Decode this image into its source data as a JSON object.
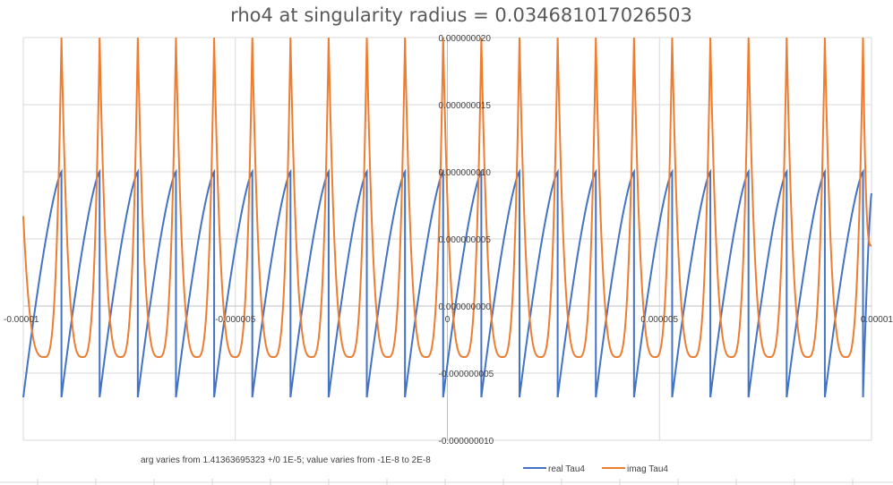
{
  "chart_data": {
    "type": "line",
    "title": "rho4 at singularity radius = 0.034681017026503",
    "xlabel": "",
    "ylabel": "",
    "xlim": [
      -1e-05,
      1e-05
    ],
    "ylim": [
      -1e-08,
      2e-08
    ],
    "x_ticks": [
      -1e-05,
      -5e-06,
      0,
      5e-06,
      1e-05
    ],
    "x_tick_labels": [
      "-0.00001",
      "-0.000005",
      "0",
      "0.000005",
      "0.00001"
    ],
    "y_ticks": [
      -1e-08,
      -5e-09,
      0,
      5e-09,
      1e-08,
      1.5e-08,
      2e-08
    ],
    "y_tick_labels": [
      "-0.000000010",
      "-0.000000005",
      "0.000000000",
      "0.000000005",
      "0.000000010",
      "0.000000015",
      "0.000000020"
    ],
    "grid": true,
    "legend_position": "bottom",
    "note": "arg varies from 1.41363695323 +/0 1E-5; value varies from -1E-8 to 2E-8",
    "series": [
      {
        "name": "real Tau4",
        "color": "#4472C4",
        "x": [
          -1e-05,
          -9.1e-06,
          -9.1e-06,
          -8.2e-06,
          -8.2e-06,
          -7.3e-06,
          -7.3e-06,
          -6.4e-06,
          -6.4e-06,
          -5.5e-06,
          -5.5e-06,
          -4.6e-06,
          -4.6e-06,
          -3.7e-06,
          -3.7e-06,
          -2.8e-06,
          -2.8e-06,
          -1.9e-06,
          -1.9e-06,
          -1e-06,
          -1e-06,
          -1e-07,
          -1e-07,
          8e-07,
          8e-07,
          1.7e-06,
          1.7e-06,
          2.6e-06,
          2.6e-06,
          3.5e-06,
          3.5e-06,
          4.4e-06,
          4.4e-06,
          5.3e-06,
          5.3e-06,
          6.2e-06,
          6.2e-06,
          7.1e-06,
          7.1e-06,
          8e-06,
          8e-06,
          8.9e-06,
          8.9e-06,
          9.8e-06,
          9.8e-06,
          1e-05
        ],
        "y": [
          -6.8e-09,
          1e-08,
          -6.8e-09,
          1e-08,
          -6.8e-09,
          1e-08,
          -6.8e-09,
          1e-08,
          -6.8e-09,
          1e-08,
          -6.8e-09,
          1e-08,
          -6.8e-09,
          1e-08,
          -6.8e-09,
          1e-08,
          -6.8e-09,
          1e-08,
          -6.8e-09,
          1e-08,
          -6.8e-09,
          1e-08,
          -6.8e-09,
          1e-08,
          -6.8e-09,
          1e-08,
          -6.8e-09,
          1e-08,
          -6.8e-09,
          1e-08,
          -6.8e-09,
          1e-08,
          -6.8e-09,
          1e-08,
          -6.8e-09,
          1e-08,
          -6.8e-09,
          1e-08,
          -6.8e-09,
          1e-08,
          -6.8e-09,
          1e-08,
          -6.8e-09,
          1e-08,
          -6.8e-09,
          8.4e-09
        ]
      },
      {
        "name": "imag Tau4",
        "color": "#ED7D31",
        "x": [
          -1e-05,
          -9.5e-06,
          -9.1e-06,
          -8.6e-06,
          -8.2e-06,
          -7.7e-06,
          -7.3e-06,
          -6.8e-06,
          -6.4e-06,
          -5.9e-06,
          -5.5e-06,
          -5e-06,
          -4.6e-06,
          -4.1e-06,
          -3.7e-06,
          -3.2e-06,
          -2.8e-06,
          -2.3e-06,
          -1.9e-06,
          -1.4e-06,
          -1e-06,
          -5e-07,
          -1e-07,
          4e-07,
          8e-07,
          1.3e-06,
          1.7e-06,
          2.2e-06,
          2.6e-06,
          3.1e-06,
          3.5e-06,
          4e-06,
          4.4e-06,
          4.9e-06,
          5.3e-06,
          5.8e-06,
          6.2e-06,
          6.7e-06,
          7.1e-06,
          7.6e-06,
          8e-06,
          8.5e-06,
          8.9e-06,
          9.4e-06,
          9.8e-06,
          1e-05
        ],
        "y": [
          6.7e-09,
          -3.8e-09,
          2e-08,
          -3.8e-09,
          2e-08,
          -3.8e-09,
          2e-08,
          -3.8e-09,
          2e-08,
          -3.8e-09,
          2e-08,
          -3.8e-09,
          2e-08,
          -3.8e-09,
          2e-08,
          -3.8e-09,
          2e-08,
          -3.8e-09,
          2e-08,
          -3.8e-09,
          2e-08,
          -3.8e-09,
          2e-08,
          -3.8e-09,
          2e-08,
          -3.8e-09,
          2e-08,
          -3.8e-09,
          2e-08,
          -3.8e-09,
          2e-08,
          -3.8e-09,
          2e-08,
          -3.8e-09,
          2e-08,
          -3.8e-09,
          2e-08,
          -3.8e-09,
          2e-08,
          -3.8e-09,
          2e-08,
          -3.8e-09,
          2e-08,
          -3.8e-09,
          2e-08,
          4.5e-09
        ]
      }
    ]
  }
}
